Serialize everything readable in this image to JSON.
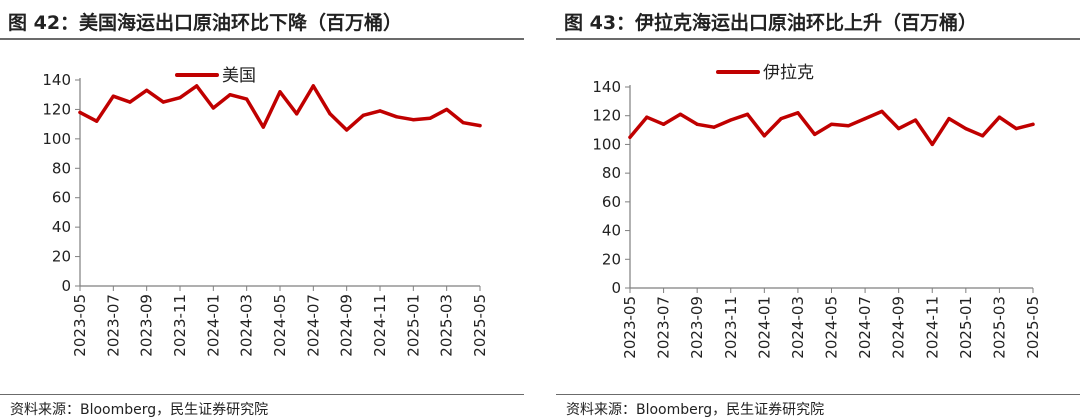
{
  "colors": {
    "series": "#c00000",
    "axis": "#7f7f7f"
  },
  "charts": [
    {
      "title": "图 42：美国海运出口原油环比下降（百万桶）",
      "source": "资料来源：Bloomberg，民生证券研究院",
      "chart_data": {
        "type": "line",
        "x": [
          "2023-05",
          "2023-06",
          "2023-07",
          "2023-08",
          "2023-09",
          "2023-10",
          "2023-11",
          "2023-12",
          "2024-01",
          "2024-02",
          "2024-03",
          "2024-04",
          "2024-05",
          "2024-06",
          "2024-07",
          "2024-08",
          "2024-09",
          "2024-10",
          "2024-11",
          "2024-12",
          "2025-01",
          "2025-02",
          "2025-03",
          "2025-04",
          "2025-05"
        ],
        "x_tick_labels": [
          "2023-05",
          "2023-07",
          "2023-09",
          "2023-11",
          "2024-01",
          "2024-03",
          "2024-05",
          "2024-07",
          "2024-09",
          "2024-11",
          "2025-01",
          "2025-03",
          "2025-05"
        ],
        "series": [
          {
            "name": "美国",
            "values": [
              118,
              112,
              129,
              125,
              133,
              125,
              128,
              136,
              121,
              130,
              127,
              108,
              132,
              117,
              136,
              117,
              106,
              116,
              119,
              115,
              113,
              114,
              120,
              111,
              109
            ]
          }
        ],
        "ylim": [
          0,
          140
        ],
        "yticks": [
          0,
          20,
          40,
          60,
          80,
          100,
          120,
          140
        ],
        "legend_position": "top-center",
        "grid": false
      }
    },
    {
      "title": "图 43：伊拉克海运出口原油环比上升（百万桶）",
      "source": "资料来源：Bloomberg，民生证券研究院",
      "chart_data": {
        "type": "line",
        "x": [
          "2023-05",
          "2023-06",
          "2023-07",
          "2023-08",
          "2023-09",
          "2023-10",
          "2023-11",
          "2023-12",
          "2024-01",
          "2024-02",
          "2024-03",
          "2024-04",
          "2024-05",
          "2024-06",
          "2024-07",
          "2024-08",
          "2024-09",
          "2024-10",
          "2024-11",
          "2024-12",
          "2025-01",
          "2025-02",
          "2025-03",
          "2025-04",
          "2025-05"
        ],
        "x_tick_labels": [
          "2023-05",
          "2023-07",
          "2023-09",
          "2023-11",
          "2024-01",
          "2024-03",
          "2024-05",
          "2024-07",
          "2024-09",
          "2024-11",
          "2025-01",
          "2025-03",
          "2025-05"
        ],
        "series": [
          {
            "name": "伊拉克",
            "values": [
              105,
              119,
              114,
              121,
              114,
              112,
              117,
              121,
              106,
              118,
              122,
              107,
              114,
              113,
              118,
              123,
              111,
              117,
              100,
              118,
              111,
              106,
              119,
              111,
              114
            ]
          }
        ],
        "ylim": [
          0,
          140
        ],
        "yticks": [
          0,
          20,
          40,
          60,
          80,
          100,
          120,
          140
        ],
        "legend_position": "top-center",
        "grid": false
      }
    }
  ]
}
